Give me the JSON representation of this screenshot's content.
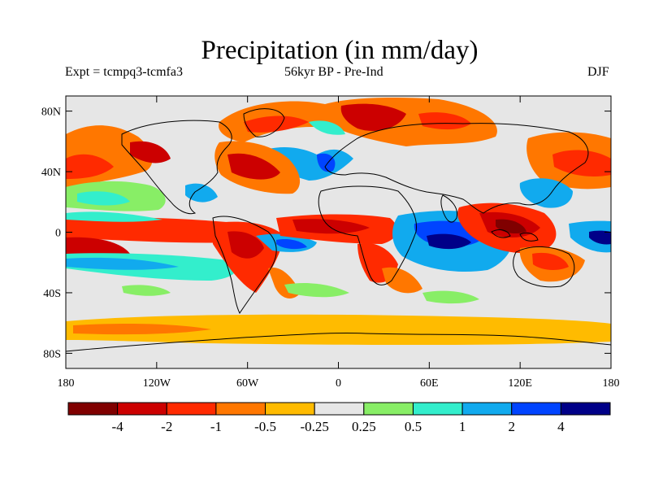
{
  "title": "Precipitation (in mm/day)",
  "left_string": "Expt = tcmpq3-tcmfa3",
  "center_string": "56kyr BP - Pre-Ind",
  "right_string": "DJF",
  "lat_ticks": [
    {
      "value": 80,
      "label": "80N"
    },
    {
      "value": 40,
      "label": "40N"
    },
    {
      "value": 0,
      "label": "0"
    },
    {
      "value": -40,
      "label": "40S"
    },
    {
      "value": -80,
      "label": "80S"
    }
  ],
  "lon_ticks": [
    {
      "value": -180,
      "label": "180"
    },
    {
      "value": -120,
      "label": "120W"
    },
    {
      "value": -60,
      "label": "60W"
    },
    {
      "value": 0,
      "label": "0"
    },
    {
      "value": 60,
      "label": "60E"
    },
    {
      "value": 120,
      "label": "120E"
    },
    {
      "value": 180,
      "label": "180"
    }
  ],
  "colorbar": {
    "colors": [
      "#800000",
      "#cc0000",
      "#ff2a00",
      "#ff7700",
      "#ffbb00",
      "#e6e6e6",
      "#88ee66",
      "#33eecc",
      "#11aaee",
      "#0044ff",
      "#000088"
    ],
    "labels": [
      "-4",
      "-2",
      "-1",
      "-0.5",
      "-0.25",
      "0.25",
      "0.5",
      "1",
      "2",
      "4"
    ]
  }
}
